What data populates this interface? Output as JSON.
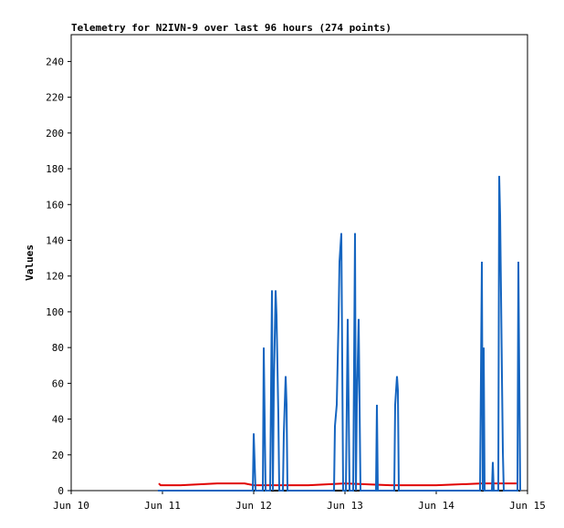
{
  "chart_data": {
    "type": "line",
    "title": "Telemetry for N2IVN-9 over last 96 hours (274 points)",
    "y_label": "Values",
    "xlim": [
      10,
      15
    ],
    "xticks": [
      {
        "value": 10,
        "label": "Jun 10"
      },
      {
        "value": 11,
        "label": "Jun 11"
      },
      {
        "value": 12,
        "label": "Jun 12"
      },
      {
        "value": 13,
        "label": "Jun 13"
      },
      {
        "value": 14,
        "label": "Jun 14"
      },
      {
        "value": 15,
        "label": "Jun 15"
      }
    ],
    "ylim": [
      0,
      255
    ],
    "yticks": [
      0,
      20,
      40,
      60,
      80,
      100,
      120,
      140,
      160,
      180,
      200,
      220,
      240
    ],
    "grid": false,
    "series": [
      {
        "color": "#000000",
        "x": [
          10.96,
          14.92
        ],
        "values": [
          0,
          0
        ]
      },
      {
        "color": "#e00000",
        "x": [
          10.96,
          10.98,
          11.2,
          11.6,
          11.9,
          12.0,
          12.3,
          12.6,
          13.0,
          13.5,
          14.0,
          14.5,
          14.9
        ],
        "values": [
          4,
          3,
          3,
          4,
          4,
          3,
          3,
          3,
          4,
          3,
          3,
          4,
          4
        ]
      },
      {
        "color": "#1565c0",
        "x": [
          10.95,
          11.99,
          12.0,
          12.01,
          12.02,
          12.1,
          12.11,
          12.12,
          12.13,
          12.18,
          12.19,
          12.2,
          12.21,
          12.22,
          12.24,
          12.25,
          12.26,
          12.27,
          12.28,
          12.32,
          12.33,
          12.35,
          12.36,
          12.37,
          12.88,
          12.89,
          12.91,
          12.93,
          12.94,
          12.96,
          12.97,
          12.98,
          13.01,
          13.02,
          13.03,
          13.04,
          13.05,
          13.09,
          13.1,
          13.11,
          13.12,
          13.13,
          13.15,
          13.16,
          13.17,
          13.34,
          13.35,
          13.36,
          13.54,
          13.55,
          13.57,
          13.58,
          13.59,
          14.48,
          14.49,
          14.5,
          14.51,
          14.52,
          14.53,
          14.61,
          14.62,
          14.63,
          14.68,
          14.69,
          14.7,
          14.71,
          14.72,
          14.73,
          14.74,
          14.89,
          14.9,
          14.91,
          14.92
        ],
        "values": [
          0,
          0,
          32,
          16,
          0,
          0,
          80,
          40,
          0,
          0,
          56,
          112,
          0,
          56,
          112,
          98,
          70,
          42,
          0,
          0,
          32,
          64,
          48,
          0,
          0,
          36,
          48,
          96,
          128,
          144,
          72,
          0,
          0,
          48,
          96,
          48,
          0,
          0,
          72,
          144,
          0,
          48,
          96,
          48,
          0,
          0,
          48,
          0,
          0,
          48,
          64,
          56,
          0,
          0,
          64,
          128,
          0,
          80,
          0,
          0,
          16,
          0,
          0,
          176,
          154,
          110,
          64,
          22,
          0,
          0,
          128,
          64,
          0
        ]
      }
    ]
  }
}
